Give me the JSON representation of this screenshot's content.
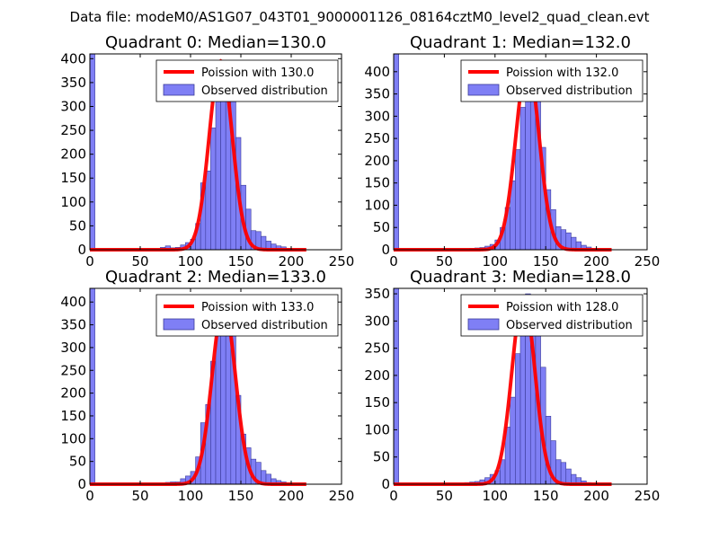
{
  "page": {
    "suptitle": "Data file: modeM0/AS1G07_043T01_9000001126_08164cztM0_level2_quad_clean.evt"
  },
  "chart_data": [
    {
      "type": "bar",
      "title": "Quadrant 0: Median=130.0",
      "median": 130.0,
      "xlim": [
        0,
        250
      ],
      "ylim": [
        0,
        410
      ],
      "xticks": [
        "0",
        "50",
        "100",
        "150",
        "200",
        "250"
      ],
      "xtick_values": [
        0,
        50,
        100,
        150,
        200,
        250
      ],
      "yticks": [
        "0",
        "50",
        "100",
        "150",
        "200",
        "250",
        "300",
        "350",
        "400"
      ],
      "ytick_values": [
        0,
        50,
        100,
        150,
        200,
        250,
        300,
        350,
        400
      ],
      "legend": [
        "Poission with 130.0",
        "Observed distribution"
      ],
      "bins_start": 0,
      "bin_width": 5,
      "counts": [
        410,
        0,
        0,
        0,
        0,
        0,
        0,
        0,
        0,
        0,
        0,
        0,
        0,
        0,
        5,
        8,
        4,
        5,
        10,
        15,
        22,
        55,
        140,
        165,
        255,
        325,
        390,
        375,
        320,
        235,
        135,
        85,
        40,
        38,
        28,
        18,
        12,
        8,
        6,
        2,
        1,
        0,
        0,
        0,
        0,
        0,
        0,
        0,
        0,
        0
      ],
      "poisson_mean": 130,
      "poisson_peak": 395
    },
    {
      "type": "bar",
      "title": "Quadrant 1: Median=132.0",
      "median": 132.0,
      "xlim": [
        0,
        250
      ],
      "ylim": [
        0,
        440
      ],
      "xticks": [
        "0",
        "50",
        "100",
        "150",
        "200",
        "250"
      ],
      "xtick_values": [
        0,
        50,
        100,
        150,
        200,
        250
      ],
      "yticks": [
        "0",
        "50",
        "100",
        "150",
        "200",
        "250",
        "300",
        "350",
        "400"
      ],
      "ytick_values": [
        0,
        50,
        100,
        150,
        200,
        250,
        300,
        350,
        400
      ],
      "legend": [
        "Poission with 132.0",
        "Observed distribution"
      ],
      "bins_start": 0,
      "bin_width": 5,
      "counts": [
        440,
        0,
        0,
        0,
        0,
        0,
        0,
        0,
        0,
        0,
        0,
        0,
        0,
        0,
        0,
        3,
        4,
        5,
        8,
        12,
        22,
        50,
        95,
        155,
        225,
        320,
        425,
        395,
        335,
        230,
        135,
        90,
        52,
        45,
        38,
        28,
        18,
        10,
        6,
        3,
        1,
        0,
        0,
        0,
        0,
        0,
        0,
        0,
        0,
        0
      ],
      "poisson_mean": 132,
      "poisson_peak": 420
    },
    {
      "type": "bar",
      "title": "Quadrant 2: Median=133.0",
      "median": 133.0,
      "xlim": [
        0,
        250
      ],
      "ylim": [
        0,
        430
      ],
      "xticks": [
        "0",
        "50",
        "100",
        "150",
        "200",
        "250"
      ],
      "xtick_values": [
        0,
        50,
        100,
        150,
        200,
        250
      ],
      "yticks": [
        "0",
        "50",
        "100",
        "150",
        "200",
        "250",
        "300",
        "350",
        "400"
      ],
      "ytick_values": [
        0,
        50,
        100,
        150,
        200,
        250,
        300,
        350,
        400
      ],
      "legend": [
        "Poission with 133.0",
        "Observed distribution"
      ],
      "bins_start": 0,
      "bin_width": 5,
      "counts": [
        430,
        0,
        0,
        0,
        0,
        0,
        0,
        0,
        0,
        0,
        0,
        0,
        0,
        0,
        0,
        4,
        5,
        5,
        12,
        18,
        28,
        60,
        135,
        175,
        270,
        335,
        395,
        360,
        335,
        195,
        110,
        80,
        55,
        48,
        30,
        22,
        12,
        8,
        5,
        2,
        1,
        0,
        0,
        0,
        0,
        0,
        0,
        0,
        0,
        0
      ],
      "poisson_mean": 133,
      "poisson_peak": 395
    },
    {
      "type": "bar",
      "title": "Quadrant 3: Median=128.0",
      "median": 128.0,
      "xlim": [
        0,
        250
      ],
      "ylim": [
        0,
        360
      ],
      "xticks": [
        "0",
        "50",
        "100",
        "150",
        "200",
        "250"
      ],
      "xtick_values": [
        0,
        50,
        100,
        150,
        200,
        250
      ],
      "yticks": [
        "0",
        "50",
        "100",
        "150",
        "200",
        "250",
        "300",
        "350"
      ],
      "ytick_values": [
        0,
        50,
        100,
        150,
        200,
        250,
        300,
        350
      ],
      "legend": [
        "Poission with 128.0",
        "Observed distribution"
      ],
      "bins_start": 0,
      "bin_width": 5,
      "counts": [
        360,
        0,
        0,
        0,
        0,
        0,
        0,
        0,
        0,
        0,
        0,
        0,
        0,
        0,
        3,
        4,
        5,
        8,
        12,
        18,
        25,
        45,
        105,
        160,
        240,
        305,
        350,
        335,
        290,
        215,
        125,
        80,
        45,
        40,
        28,
        18,
        12,
        6,
        3,
        1,
        0,
        0,
        0,
        0,
        0,
        0,
        0,
        0,
        0,
        0
      ],
      "poisson_mean": 128,
      "poisson_peak": 345
    }
  ]
}
